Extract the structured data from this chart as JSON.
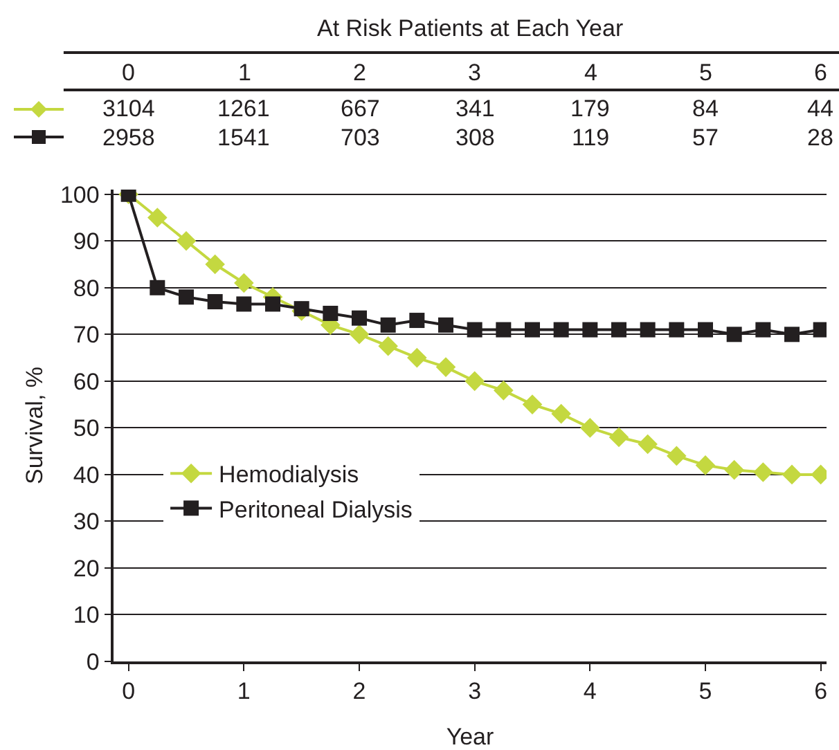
{
  "chart_data": {
    "type": "line",
    "xlabel": "Year",
    "ylabel": "Survival, %",
    "x": [
      0,
      0.25,
      0.5,
      0.75,
      1,
      1.25,
      1.5,
      1.75,
      2,
      2.25,
      2.5,
      2.75,
      3,
      3.25,
      3.5,
      3.75,
      4,
      4.25,
      4.5,
      4.75,
      5,
      5.25,
      5.5,
      5.75,
      6
    ],
    "series": [
      {
        "name": "Hemodialysis",
        "color": "#c4d840",
        "marker": "diamond",
        "values": [
          100,
          95,
          90,
          85,
          81,
          78,
          75,
          72,
          70,
          67.5,
          65,
          63,
          60,
          58,
          55,
          53,
          50,
          48,
          46.5,
          44,
          42,
          41,
          40.5,
          40,
          40
        ]
      },
      {
        "name": "Peritoneal Dialysis",
        "color": "#231f20",
        "marker": "square",
        "values": [
          100,
          80,
          78,
          77,
          76.5,
          76.5,
          75.5,
          74.5,
          73.5,
          72,
          73,
          72,
          71,
          71,
          71,
          71,
          71,
          71,
          71,
          71,
          71,
          70,
          71,
          70,
          71
        ]
      }
    ],
    "xlim": [
      -0.13,
      6.05
    ],
    "xticks": [
      0,
      1,
      2,
      3,
      4,
      5,
      6
    ],
    "ylim": [
      0,
      101
    ],
    "yticks": [
      0,
      10,
      20,
      30,
      40,
      50,
      60,
      70,
      80,
      90,
      100
    ],
    "grid": "y",
    "legend": "left",
    "line_style": "solid",
    "annotations": [
      "At Risk Patients at Each Year",
      "0",
      "1",
      "2",
      "3",
      "4",
      "5",
      "6",
      "3104",
      "1261",
      "667",
      "341",
      "179",
      "84",
      "44",
      "2958",
      "1541",
      "703",
      "308",
      "119",
      "57",
      "28"
    ]
  }
}
